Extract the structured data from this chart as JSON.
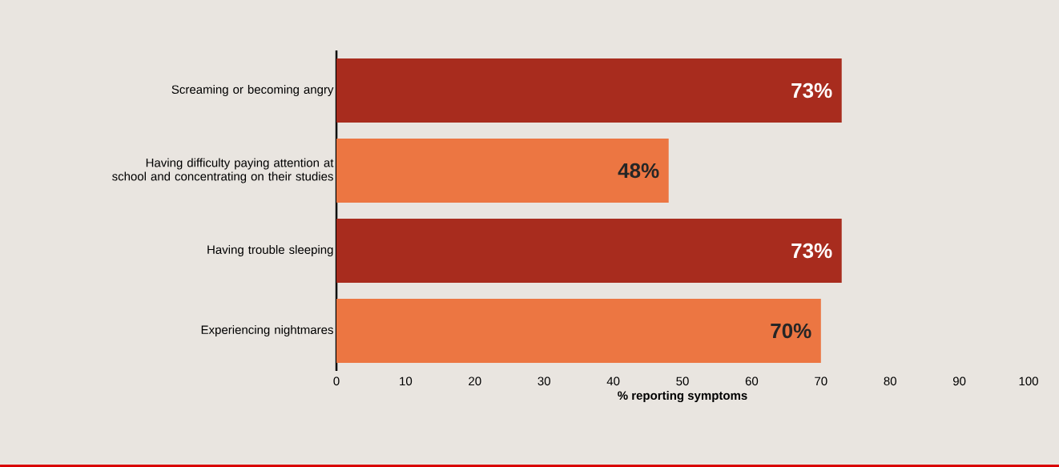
{
  "chart_data": {
    "type": "bar",
    "orientation": "horizontal",
    "categories": [
      "Screaming or becoming angry",
      "Having difficulty paying attention at school and concentrating on their studies",
      "Having trouble sleeping",
      "Experiencing nightmares"
    ],
    "values": [
      73,
      48,
      73,
      70
    ],
    "colors": [
      "#a82c1e",
      "#ec7642",
      "#a82c1e",
      "#ec7642"
    ],
    "value_labels": [
      "73%",
      "48%",
      "73%",
      "70%"
    ],
    "xlim": [
      0,
      100
    ],
    "xticks": [
      0,
      10,
      20,
      30,
      40,
      50,
      60,
      70,
      80,
      90,
      100
    ],
    "xlabel": "% reporting symptoms",
    "grid": false
  }
}
